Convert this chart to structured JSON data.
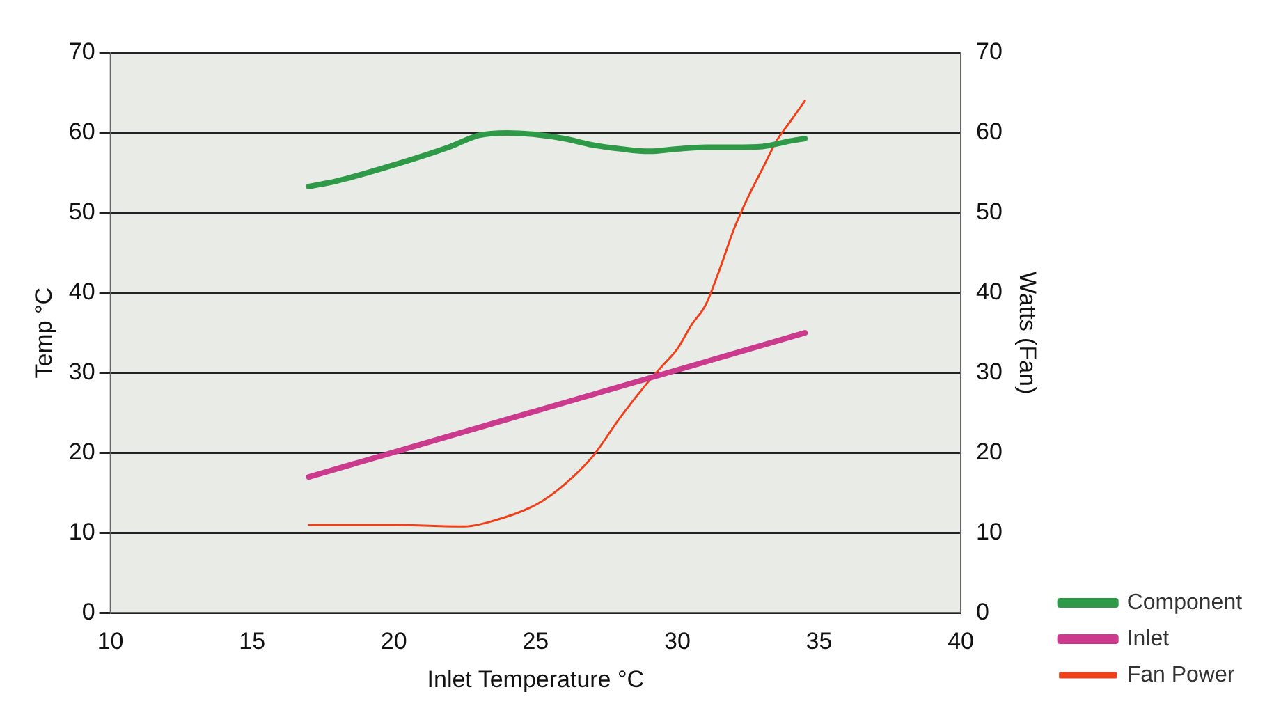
{
  "chart_data": {
    "type": "line",
    "xlabel": "Inlet Temperature °C",
    "ylabel": "Temp °C",
    "y2label": "Watts (Fan)",
    "xlim": [
      10,
      40
    ],
    "xticks": [
      10,
      15,
      20,
      25,
      30,
      35,
      40
    ],
    "ylim": [
      0,
      70
    ],
    "yticks": [
      0,
      10,
      20,
      30,
      40,
      50,
      60,
      70
    ],
    "y2lim": [
      0,
      70
    ],
    "y2ticks": [
      0,
      10,
      20,
      30,
      40,
      50,
      60,
      70
    ],
    "grid": "y",
    "legend": "bottom right",
    "marker": "none",
    "line_style": "solid",
    "series": [
      {
        "name": "Component",
        "color": "#2e9a48",
        "x": [
          17,
          18,
          20,
          22,
          23,
          24,
          25,
          26,
          27,
          28,
          29,
          30,
          31,
          32,
          33,
          34,
          34.5
        ],
        "values": [
          53.3,
          54,
          56,
          58.3,
          59.7,
          60,
          59.8,
          59.3,
          58.5,
          58,
          57.7,
          58,
          58.2,
          58.2,
          58.3,
          59,
          59.3
        ]
      },
      {
        "name": "Inlet",
        "color": "#cc3a8e",
        "x": [
          17,
          34.5
        ],
        "values": [
          17,
          35
        ]
      },
      {
        "name": "Fan Power",
        "color": "#f0401a",
        "axis": "y2",
        "x": [
          17,
          20,
          22.5,
          23.5,
          25,
          26,
          27,
          28,
          29,
          29.5,
          30,
          30.5,
          31,
          31.5,
          32,
          32.5,
          33,
          33.5,
          34,
          34.5
        ],
        "values": [
          11,
          11,
          10.8,
          11.5,
          13.5,
          16,
          19.5,
          24.5,
          29,
          31,
          33,
          36,
          38.5,
          43,
          48,
          52,
          55.5,
          59,
          61.5,
          64
        ]
      }
    ]
  }
}
